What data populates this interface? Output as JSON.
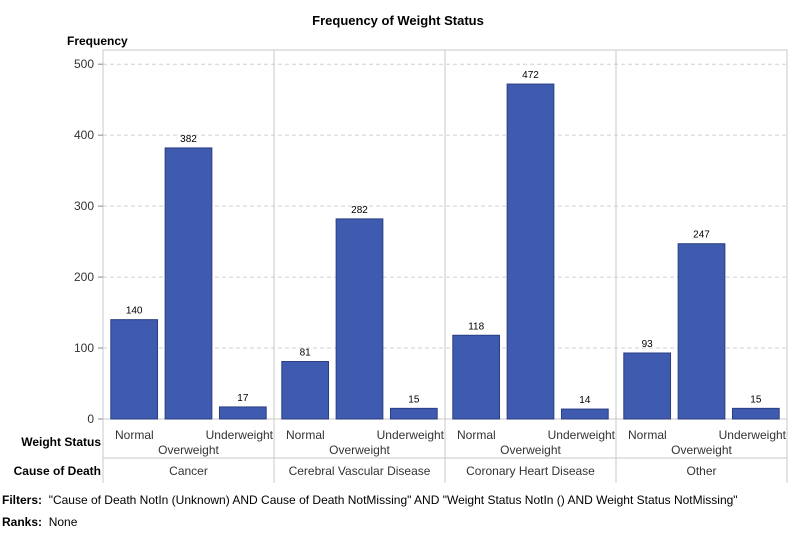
{
  "chart_data": {
    "type": "bar",
    "title": "Frequency of Weight Status",
    "ylabel": "Frequency",
    "ylim": [
      0,
      520
    ],
    "yticks": [
      0,
      100,
      200,
      300,
      400,
      500
    ],
    "grid": true,
    "bar_color": "#3F5BAF",
    "row_labels": {
      "subgroup": "Weight Status",
      "group": "Cause of Death"
    },
    "subcategories": [
      "Normal",
      "Overweight",
      "Underweight"
    ],
    "groups": [
      {
        "name": "Cancer",
        "values": [
          140,
          382,
          17
        ]
      },
      {
        "name": "Cerebral Vascular Disease",
        "values": [
          81,
          282,
          15
        ]
      },
      {
        "name": "Coronary Heart Disease",
        "values": [
          118,
          472,
          14
        ]
      },
      {
        "name": "Other",
        "values": [
          93,
          247,
          15
        ]
      }
    ]
  },
  "footer": {
    "filters_label": "Filters:",
    "filters_text": "\"Cause of Death NotIn (Unknown) AND Cause of Death NotMissing\" AND \"Weight Status NotIn () AND Weight Status NotMissing\"",
    "ranks_label": "Ranks:",
    "ranks_text": "None"
  }
}
